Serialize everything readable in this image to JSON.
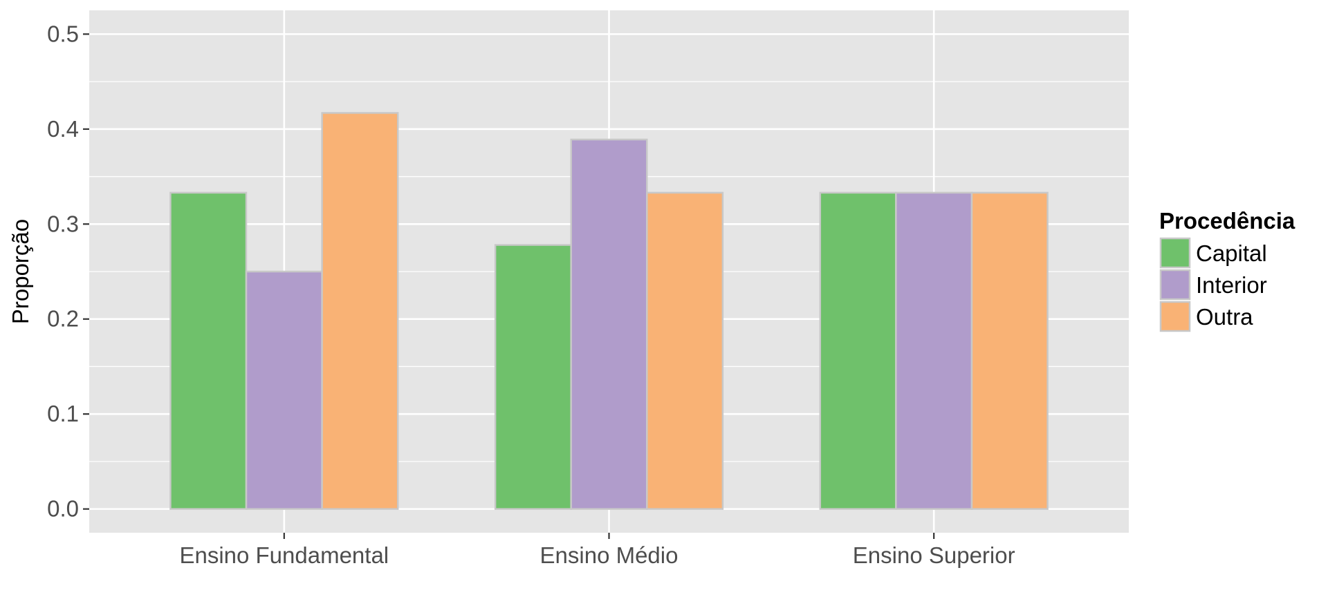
{
  "chart_data": {
    "type": "bar",
    "title": "",
    "xlabel": "",
    "ylabel": "Proporção",
    "categories": [
      "Ensino Fundamental",
      "Ensino Médio",
      "Ensino Superior"
    ],
    "series": [
      {
        "name": "Capital",
        "color": "#6fc16b",
        "values": [
          0.333,
          0.278,
          0.333
        ]
      },
      {
        "name": "Interior",
        "color": "#b09ccb",
        "values": [
          0.25,
          0.389,
          0.333
        ]
      },
      {
        "name": "Outra",
        "color": "#f9b275",
        "values": [
          0.417,
          0.333,
          0.333
        ]
      }
    ],
    "ylim": [
      -0.025,
      0.525
    ],
    "yticks": [
      0.0,
      0.1,
      0.2,
      0.3,
      0.4,
      0.5
    ],
    "ytick_labels": [
      "0.0",
      "0.1",
      "0.2",
      "0.3",
      "0.4",
      "0.5"
    ],
    "grid": true,
    "legend": {
      "title": "Procedência",
      "position": "right"
    },
    "colors": {
      "panel": "#e5e5e5",
      "gridline": "#ffffff",
      "bar_outline": "#c8c8c8",
      "tick_text": "#4d4d4d"
    }
  }
}
